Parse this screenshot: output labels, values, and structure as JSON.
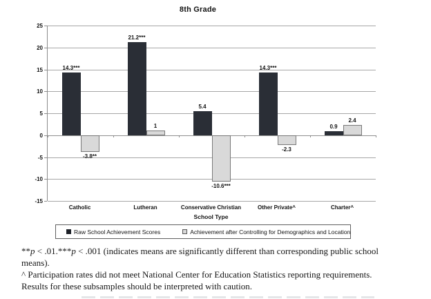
{
  "chart_data": {
    "type": "bar",
    "title": "8th Grade",
    "xlabel": "School Type",
    "categories": [
      "Catholic",
      "Lutheran",
      "Conservative Christian",
      "Other Private^",
      "Charter^"
    ],
    "series": [
      {
        "name": "Raw School Achievement Scores",
        "color": "#2a2e36",
        "values": [
          14.3,
          21.2,
          5.4,
          14.3,
          0.9
        ],
        "labels": [
          "14.3***",
          "21.2***",
          "5.4",
          "14.3***",
          "0.9"
        ]
      },
      {
        "name": "Achievement after Controlling for Demographics and Location",
        "color": "#d9d9d9",
        "values": [
          -3.8,
          1,
          -10.6,
          -2.3,
          2.4
        ],
        "labels": [
          "-3.8**",
          "1",
          "-10.6***",
          "-2.3",
          "2.4"
        ]
      }
    ],
    "ylim": [
      -15,
      25
    ],
    "yticks": [
      25,
      20,
      15,
      10,
      5,
      0,
      -5,
      -10,
      -15
    ],
    "grid": true,
    "legend_position": "bottom"
  },
  "footnotes": {
    "lines": [
      {
        "segments": [
          {
            "t": "**"
          },
          {
            "t": "p",
            "italic": true
          },
          {
            "t": " < .01."
          },
          {
            "t": "***"
          },
          {
            "t": "p",
            "italic": true
          },
          {
            "t": " < .001 (indicates means are significantly different than corresponding public school"
          }
        ]
      },
      {
        "segments": [
          {
            "t": "means)."
          }
        ]
      },
      {
        "segments": [
          {
            "t": "^ Participation rates did not meet National Center for Education Statistics reporting requirements."
          }
        ]
      },
      {
        "segments": [
          {
            "t": "Results for these subsamples should be interpreted with caution."
          }
        ]
      }
    ]
  }
}
